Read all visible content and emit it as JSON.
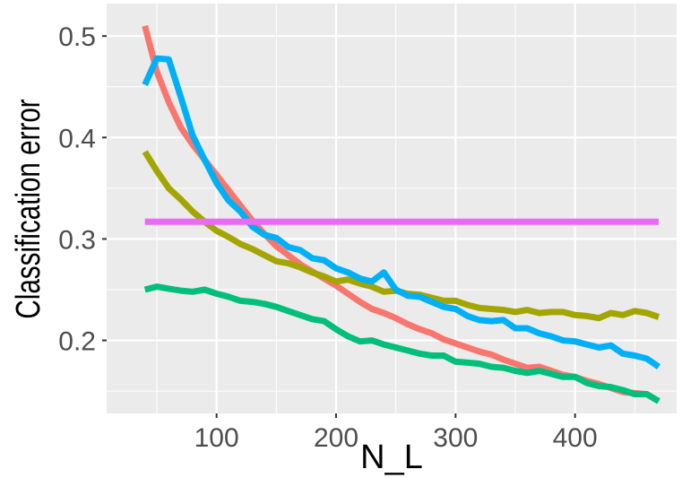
{
  "chart_data": {
    "type": "line",
    "title": "",
    "xlabel": "N_L",
    "ylabel": "Classification error",
    "xlim": [
      8,
      485
    ],
    "ylim": [
      0.128,
      0.532
    ],
    "x_ticks": [
      100,
      200,
      300,
      400
    ],
    "x_tick_labels": [
      "100",
      "200",
      "300",
      "400"
    ],
    "y_ticks": [
      0.2,
      0.3,
      0.4,
      0.5
    ],
    "y_tick_labels": [
      "0.2",
      "0.3",
      "0.4",
      "0.5"
    ],
    "grid": true,
    "legend": "none",
    "panel_background": "#ebebeb",
    "grid_color": "#ffffff",
    "series": [
      {
        "color": "#f8766d",
        "x": [
          40,
          50,
          60,
          70,
          80,
          90,
          100,
          110,
          120,
          130,
          140,
          150,
          160,
          170,
          180,
          190,
          200,
          210,
          220,
          230,
          240,
          250,
          260,
          270,
          280,
          290,
          300,
          310,
          320,
          330,
          340,
          350,
          360,
          370,
          380,
          390,
          400,
          410,
          420,
          430,
          440,
          450,
          460,
          470
        ],
        "values": [
          0.51,
          0.465,
          0.435,
          0.41,
          0.393,
          0.378,
          0.363,
          0.348,
          0.333,
          0.318,
          0.305,
          0.293,
          0.284,
          0.275,
          0.268,
          0.261,
          0.254,
          0.246,
          0.238,
          0.231,
          0.227,
          0.222,
          0.216,
          0.211,
          0.207,
          0.201,
          0.197,
          0.193,
          0.189,
          0.186,
          0.181,
          0.177,
          0.173,
          0.174,
          0.17,
          0.166,
          0.164,
          0.16,
          0.157,
          0.153,
          0.149,
          0.148,
          0.147,
          0.14
        ]
      },
      {
        "color": "#a3a500",
        "x": [
          40,
          50,
          60,
          70,
          80,
          90,
          100,
          110,
          120,
          130,
          140,
          150,
          160,
          170,
          180,
          190,
          200,
          210,
          220,
          230,
          240,
          250,
          260,
          270,
          280,
          290,
          300,
          310,
          320,
          330,
          340,
          350,
          360,
          370,
          380,
          390,
          400,
          410,
          420,
          430,
          440,
          450,
          460,
          470
        ],
        "values": [
          0.386,
          0.367,
          0.35,
          0.339,
          0.327,
          0.317,
          0.308,
          0.302,
          0.295,
          0.29,
          0.284,
          0.278,
          0.276,
          0.272,
          0.267,
          0.263,
          0.258,
          0.26,
          0.256,
          0.253,
          0.248,
          0.249,
          0.246,
          0.245,
          0.242,
          0.239,
          0.239,
          0.235,
          0.232,
          0.231,
          0.23,
          0.228,
          0.23,
          0.227,
          0.228,
          0.228,
          0.225,
          0.224,
          0.222,
          0.227,
          0.225,
          0.229,
          0.227,
          0.223
        ]
      },
      {
        "color": "#00bf7d",
        "x": [
          40,
          50,
          60,
          70,
          80,
          90,
          100,
          110,
          120,
          130,
          140,
          150,
          160,
          170,
          180,
          190,
          200,
          210,
          220,
          230,
          240,
          250,
          260,
          270,
          280,
          290,
          300,
          310,
          320,
          330,
          340,
          350,
          360,
          370,
          380,
          390,
          400,
          410,
          420,
          430,
          440,
          450,
          460,
          470
        ],
        "values": [
          0.25,
          0.253,
          0.251,
          0.249,
          0.248,
          0.25,
          0.246,
          0.243,
          0.239,
          0.238,
          0.236,
          0.233,
          0.229,
          0.225,
          0.221,
          0.219,
          0.211,
          0.204,
          0.199,
          0.2,
          0.196,
          0.193,
          0.19,
          0.187,
          0.185,
          0.185,
          0.179,
          0.178,
          0.177,
          0.174,
          0.173,
          0.17,
          0.168,
          0.17,
          0.167,
          0.164,
          0.164,
          0.158,
          0.155,
          0.154,
          0.151,
          0.147,
          0.147,
          0.14
        ]
      },
      {
        "color": "#00b0f6",
        "x": [
          40,
          50,
          60,
          70,
          80,
          90,
          100,
          110,
          120,
          130,
          140,
          150,
          160,
          170,
          180,
          190,
          200,
          210,
          220,
          230,
          240,
          250,
          260,
          270,
          280,
          290,
          300,
          310,
          320,
          330,
          340,
          350,
          360,
          370,
          380,
          390,
          400,
          410,
          420,
          430,
          440,
          450,
          460,
          470
        ],
        "values": [
          0.452,
          0.478,
          0.477,
          0.44,
          0.402,
          0.378,
          0.355,
          0.338,
          0.327,
          0.312,
          0.304,
          0.301,
          0.292,
          0.289,
          0.281,
          0.279,
          0.271,
          0.267,
          0.261,
          0.258,
          0.267,
          0.25,
          0.244,
          0.243,
          0.238,
          0.233,
          0.231,
          0.224,
          0.22,
          0.219,
          0.22,
          0.212,
          0.212,
          0.207,
          0.204,
          0.2,
          0.199,
          0.196,
          0.193,
          0.195,
          0.187,
          0.185,
          0.182,
          0.174
        ]
      },
      {
        "color": "#e76bf3",
        "x": [
          40,
          470
        ],
        "values": [
          0.317,
          0.317
        ]
      }
    ]
  }
}
